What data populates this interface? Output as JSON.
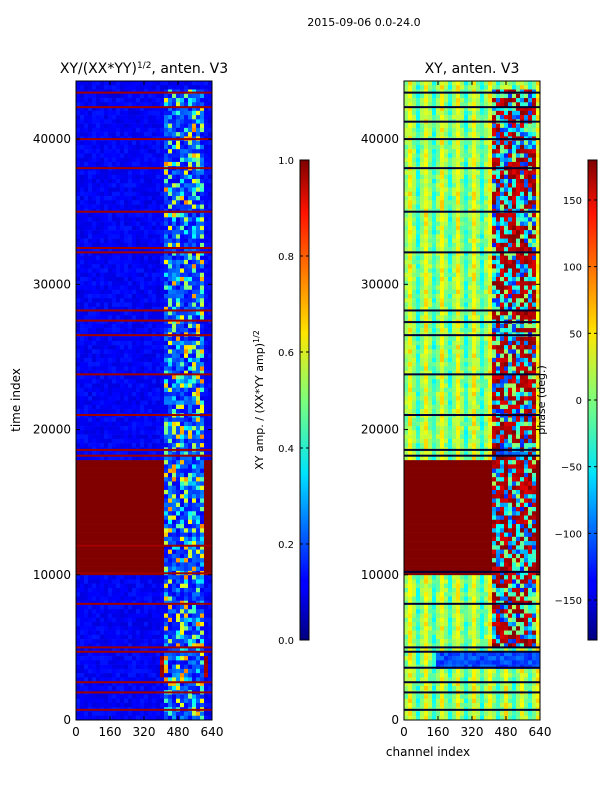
{
  "figure": {
    "suptitle": "2015-09-06 0.0-24.0"
  },
  "chart_data": [
    {
      "type": "heatmap",
      "title_main": "XY/(XX*YY)",
      "title_sup": "1/2",
      "title_tail": ", anten. V3",
      "xlabel": "",
      "ylabel": "time index",
      "xlim": [
        0,
        640
      ],
      "ylim": [
        0,
        44000
      ],
      "xticks": [
        0,
        160,
        320,
        480,
        640
      ],
      "yticks": [
        0,
        10000,
        20000,
        30000,
        40000
      ],
      "colormap": "jet",
      "colorbar": {
        "label_main": "XY amp. / (XX*YY amp)",
        "label_sup": "1/2",
        "range": [
          0.0,
          1.0
        ],
        "ticks": [
          "0.0",
          "0.2",
          "0.4",
          "0.6",
          "0.8",
          "1.0"
        ],
        "tick_values": [
          0.0,
          0.2,
          0.4,
          0.6,
          0.8,
          1.0
        ]
      },
      "background_value": 0.12,
      "regions": [
        {
          "name": "saturated block",
          "t0": 10000,
          "t1": 17800,
          "ch0": 0,
          "ch1": 640,
          "value": 1.0
        },
        {
          "name": "low-time bright patch",
          "t0": 2800,
          "t1": 4500,
          "ch0": 400,
          "ch1": 620,
          "value": 0.95
        },
        {
          "name": "active high channels",
          "t0": 10000,
          "t1": 43500,
          "ch0": 410,
          "ch1": 600,
          "value": 0.45
        },
        {
          "name": "active high channels (early)",
          "t0": 0,
          "t1": 10000,
          "ch0": 410,
          "ch1": 600,
          "value": 0.4
        }
      ],
      "band_rows": [
        700,
        1900,
        2600,
        4700,
        5000,
        8000,
        10100,
        12000,
        18200,
        18600,
        21000,
        23800,
        26500,
        27500,
        28200,
        32200,
        32500,
        35000,
        38000,
        40000,
        42200,
        43200
      ]
    },
    {
      "type": "heatmap",
      "title": "XY, anten. V3",
      "xlabel": "channel index",
      "ylabel": "",
      "xlim": [
        0,
        640
      ],
      "ylim": [
        0,
        44000
      ],
      "xticks": [
        0,
        160,
        320,
        480,
        640
      ],
      "yticks": [
        0,
        10000,
        20000,
        30000,
        40000
      ],
      "colormap": "jet",
      "colorbar": {
        "label": "phase (deg.)",
        "range": [
          -180,
          180
        ],
        "ticks": [
          "150",
          "100",
          "50",
          "0",
          "−50",
          "−100",
          "−150"
        ],
        "tick_values": [
          150,
          100,
          50,
          0,
          -50,
          -100,
          -150
        ]
      },
      "background_value": 15,
      "regions": [
        {
          "name": "saturated block",
          "t0": 10000,
          "t1": 17800,
          "ch0": 0,
          "ch1": 640,
          "value": 180
        },
        {
          "name": "low band",
          "t0": 3500,
          "t1": 4700,
          "ch0": 160,
          "ch1": 640,
          "value": -130
        },
        {
          "name": "phase wraps high channels",
          "t0": 5000,
          "t1": 43500,
          "ch0": 420,
          "ch1": 620,
          "value": 120
        }
      ],
      "band_rows": [
        700,
        1900,
        2600,
        3600,
        4700,
        5000,
        8000,
        10200,
        18200,
        18600,
        21000,
        23800,
        26500,
        27400,
        28200,
        32200,
        35000,
        38000,
        40000,
        41200,
        42200,
        43200
      ]
    }
  ]
}
